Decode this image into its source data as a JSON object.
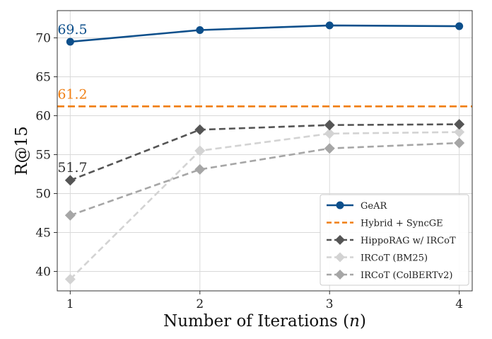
{
  "chart_data": {
    "type": "line",
    "xlabel_main": "Number of Iterations (",
    "xlabel_var": "n",
    "xlabel_end": ")",
    "ylabel": "R@15",
    "x": [
      1,
      2,
      3,
      4
    ],
    "xticks": [
      "1",
      "2",
      "3",
      "4"
    ],
    "xlim": [
      0.9,
      4.1
    ],
    "ylim": [
      37.5,
      73.5
    ],
    "yticks": [
      40,
      45,
      50,
      55,
      60,
      65,
      70
    ],
    "ytick_labels": [
      "40",
      "45",
      "50",
      "55",
      "60",
      "65",
      "70"
    ],
    "grid": true,
    "legend_position": "bottom-right",
    "series": [
      {
        "name": "GeAR",
        "values": [
          69.5,
          71.0,
          71.6,
          71.5
        ],
        "color": "#0d4f8b",
        "dash": "solid",
        "marker": "circle"
      },
      {
        "name": "Hybrid + SyncGE",
        "hline": 61.2,
        "color": "#f07f13",
        "dash": "dashed",
        "marker": "none"
      },
      {
        "name": "HippoRAG w/ IRCoT",
        "values": [
          51.7,
          58.2,
          58.8,
          58.9
        ],
        "color": "#555555",
        "dash": "dashed",
        "marker": "diamond"
      },
      {
        "name": "IRCoT (BM25)",
        "values": [
          39.0,
          55.5,
          57.7,
          57.9
        ],
        "color": "#d3d3d3",
        "dash": "dashed",
        "marker": "diamond"
      },
      {
        "name": "IRCoT (ColBERTv2)",
        "values": [
          47.2,
          53.1,
          55.8,
          56.5
        ],
        "color": "#a6a6a6",
        "dash": "dashed",
        "marker": "diamond"
      }
    ],
    "annotations": [
      {
        "text": "69.5",
        "color": "#0d4f8b"
      },
      {
        "text": "61.2",
        "color": "#f07f13"
      },
      {
        "text": "51.7",
        "color": "#333333"
      }
    ]
  }
}
